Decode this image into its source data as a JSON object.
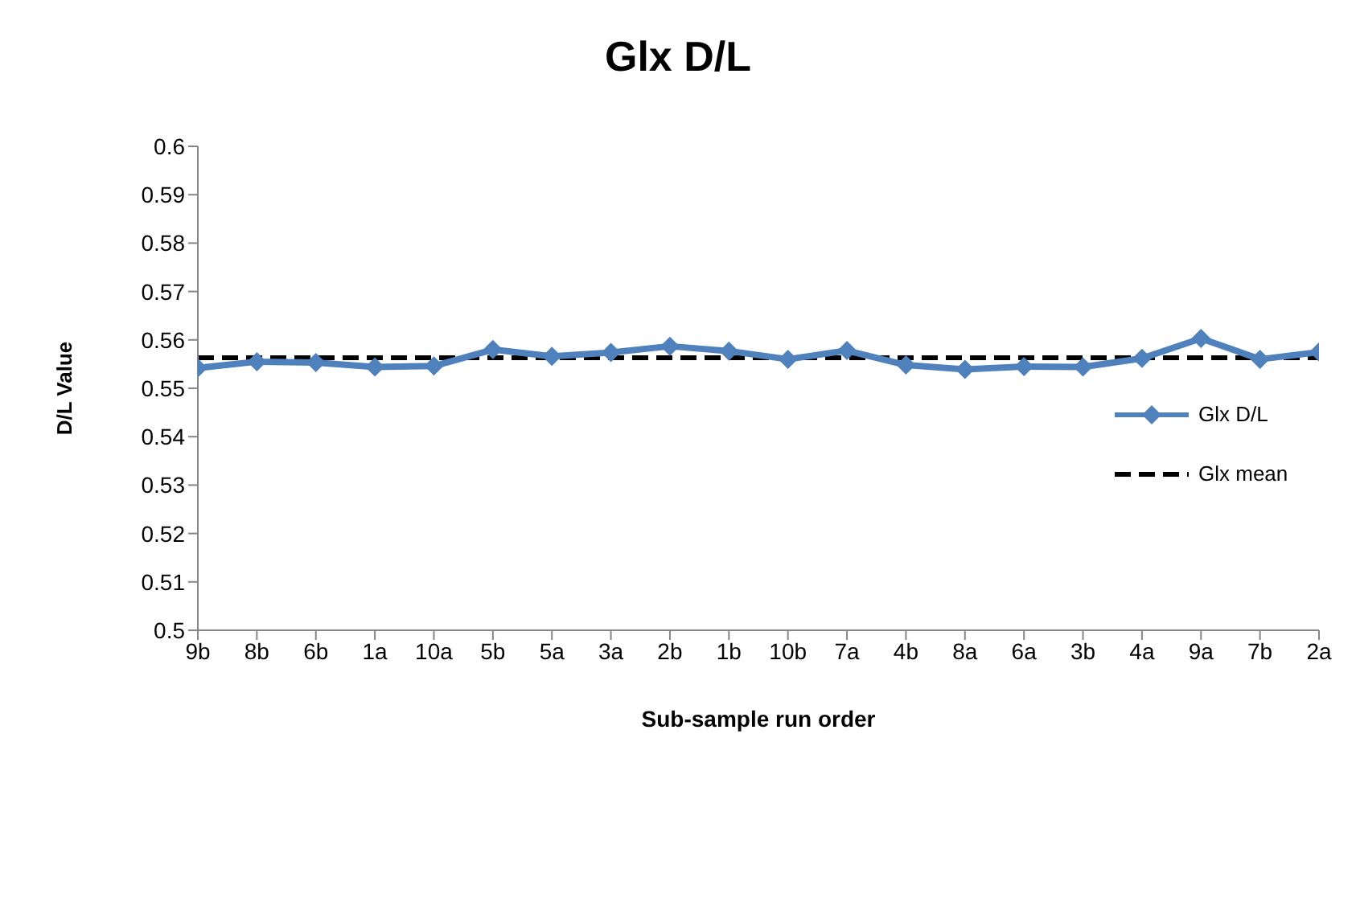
{
  "chart_data": {
    "type": "line",
    "title": "Glx D/L",
    "xlabel": "Sub-sample run order",
    "ylabel": "D/L Value",
    "categories": [
      "9b",
      "8b",
      "6b",
      "1a",
      "10a",
      "5b",
      "5a",
      "3a",
      "2b",
      "1b",
      "10b",
      "7a",
      "4b",
      "8a",
      "6a",
      "3b",
      "4a",
      "9a",
      "7b",
      "2a"
    ],
    "series": [
      {
        "name": "Glx D/L",
        "color": "#4f81bd",
        "values": [
          0.5542,
          0.5555,
          0.5553,
          0.5544,
          0.5546,
          0.558,
          0.5566,
          0.5574,
          0.5587,
          0.5577,
          0.556,
          0.5578,
          0.5548,
          0.5539,
          0.5545,
          0.5544,
          0.5562,
          0.5603,
          0.556,
          0.5575
        ]
      }
    ],
    "ref_lines": [
      {
        "axis": "y",
        "value": 0.5563,
        "label": "Glx mean",
        "color": "#000000",
        "line_style": "dashed"
      }
    ],
    "ylim": [
      0.5,
      0.6
    ],
    "yticks": [
      0.5,
      0.51,
      0.52,
      0.53,
      0.54,
      0.55,
      0.56,
      0.57,
      0.58,
      0.59,
      0.6
    ],
    "grid": false,
    "legend": "right",
    "marker": "diamond",
    "line_style": "solid"
  }
}
